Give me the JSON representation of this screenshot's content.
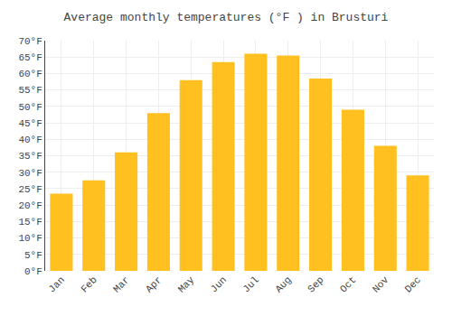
{
  "chart_data": {
    "type": "bar",
    "title": "Average monthly temperatures (°F ) in Brusturi",
    "categories": [
      "Jan",
      "Feb",
      "Mar",
      "Apr",
      "May",
      "Jun",
      "Jul",
      "Aug",
      "Sep",
      "Oct",
      "Nov",
      "Dec"
    ],
    "values": [
      23.5,
      27.5,
      36.0,
      48.0,
      58.0,
      63.5,
      66.0,
      65.5,
      58.5,
      49.0,
      38.0,
      29.0
    ],
    "color": "#FFC020",
    "ylim": [
      0,
      70
    ],
    "yticks": [
      {
        "value": 0,
        "label": "0°F"
      },
      {
        "value": 5,
        "label": "5°F"
      },
      {
        "value": 10,
        "label": "10°F"
      },
      {
        "value": 15,
        "label": "15°F"
      },
      {
        "value": 20,
        "label": "20°F"
      },
      {
        "value": 25,
        "label": "25°F"
      },
      {
        "value": 30,
        "label": "30°F"
      },
      {
        "value": 35,
        "label": "35°F"
      },
      {
        "value": 40,
        "label": "40°F"
      },
      {
        "value": 45,
        "label": "45°F"
      },
      {
        "value": 50,
        "label": "50°F"
      },
      {
        "value": 55,
        "label": "55°F"
      },
      {
        "value": 60,
        "label": "60°F"
      },
      {
        "value": 65,
        "label": "65°F"
      },
      {
        "value": 70,
        "label": "70°F"
      }
    ],
    "grid": true
  }
}
